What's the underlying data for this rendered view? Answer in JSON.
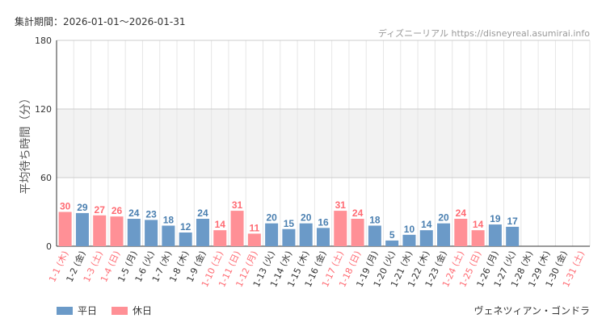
{
  "header": {
    "period": "集計期間：2026-01-01～2026-01-31",
    "watermark": "ディズニーリアル https://disneyreal.asumirai.info"
  },
  "footer": {
    "attraction": "ヴェネツィアン・ゴンドラ"
  },
  "legend": [
    {
      "label": "平日",
      "color": "#6b9ac8"
    },
    {
      "label": "休日",
      "color": "#ff9096"
    }
  ],
  "colors": {
    "weekday": "#6b9ac8",
    "weekday_label": "#4a7fb0",
    "holiday": "#ff9096",
    "holiday_label": "#ff6b73",
    "band": "#f2f2f2",
    "grid": "#e6e6e6"
  },
  "chart_data": {
    "type": "bar",
    "ylabel": "平均待ち時間（分）",
    "xlabel": "",
    "ylim": [
      0,
      180
    ],
    "yticks": [
      0,
      60,
      120,
      180
    ],
    "shaded_band": [
      60,
      120
    ],
    "grid": true,
    "legend_position": "bottom-left",
    "categories": [
      "1-1 (木)",
      "1-2 (金)",
      "1-3 (土)",
      "1-4 (日)",
      "1-5 (月)",
      "1-6 (火)",
      "1-7 (水)",
      "1-8 (木)",
      "1-9 (金)",
      "1-10 (土)",
      "1-11 (日)",
      "1-12 (月)",
      "1-13 (火)",
      "1-14 (水)",
      "1-15 (木)",
      "1-16 (金)",
      "1-17 (土)",
      "1-18 (日)",
      "1-19 (月)",
      "1-20 (火)",
      "1-21 (水)",
      "1-22 (木)",
      "1-23 (金)",
      "1-24 (土)",
      "1-25 (日)",
      "1-26 (月)",
      "1-27 (火)",
      "1-28 (水)",
      "1-29 (木)",
      "1-30 (金)",
      "1-31 (土)"
    ],
    "values": [
      30,
      29,
      27,
      26,
      24,
      23,
      18,
      12,
      24,
      14,
      31,
      11,
      20,
      15,
      20,
      16,
      31,
      24,
      18,
      5,
      10,
      14,
      20,
      24,
      14,
      19,
      17,
      null,
      null,
      null,
      null
    ],
    "day_type": [
      "休日",
      "平日",
      "休日",
      "休日",
      "平日",
      "平日",
      "平日",
      "平日",
      "平日",
      "休日",
      "休日",
      "休日",
      "平日",
      "平日",
      "平日",
      "平日",
      "休日",
      "休日",
      "平日",
      "平日",
      "平日",
      "平日",
      "平日",
      "休日",
      "休日",
      "平日",
      "平日",
      "平日",
      "平日",
      "平日",
      "休日"
    ]
  }
}
